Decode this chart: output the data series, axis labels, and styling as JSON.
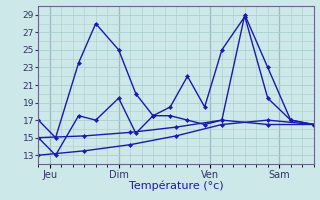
{
  "background_color": "#cce8e8",
  "grid_color": "#aacece",
  "line_color": "#1a1ab0",
  "xlabel": "Température (°c)",
  "xlabel_fontsize": 8,
  "yticks": [
    13,
    15,
    17,
    19,
    21,
    23,
    25,
    27,
    29
  ],
  "ylim": [
    12,
    30
  ],
  "xlim": [
    0,
    96
  ],
  "xtick_positions": [
    4,
    28,
    60,
    84
  ],
  "xtick_labels": [
    "Jeu",
    "Dim",
    "Ven",
    "Sam"
  ],
  "vlines": [
    4,
    28,
    60,
    84
  ],
  "series": [
    {
      "x": [
        0,
        6,
        14,
        20,
        28,
        34,
        40,
        46,
        52,
        58,
        64,
        72,
        80,
        88,
        96
      ],
      "y": [
        17,
        15,
        23.5,
        28,
        25,
        20,
        17.5,
        17.5,
        17,
        16.5,
        17,
        29,
        23,
        17,
        16.5
      ]
    },
    {
      "x": [
        0,
        6,
        14,
        20,
        28,
        34,
        40,
        46,
        52,
        58,
        64,
        72,
        80,
        88,
        96
      ],
      "y": [
        15,
        13,
        17.5,
        17,
        19.5,
        15.5,
        17.5,
        18.5,
        22,
        18.5,
        25,
        28.8,
        19.5,
        17,
        16.5
      ]
    },
    {
      "x": [
        0,
        16,
        32,
        48,
        64,
        80,
        96
      ],
      "y": [
        15,
        15.2,
        15.6,
        16.2,
        17,
        16.5,
        16.5
      ]
    },
    {
      "x": [
        0,
        16,
        32,
        48,
        64,
        80,
        96
      ],
      "y": [
        13,
        13.5,
        14.2,
        15.2,
        16.5,
        17,
        16.5
      ]
    }
  ]
}
